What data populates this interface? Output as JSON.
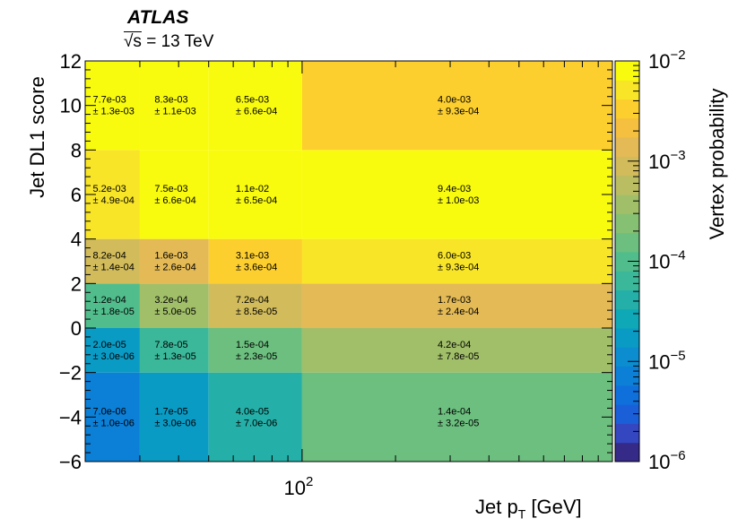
{
  "header": {
    "experiment": "ATLAS",
    "energy_sqrt": "√s",
    "energy_value": "= 13 TeV"
  },
  "chart_data": {
    "type": "heatmap",
    "xlabel_main": "Jet p",
    "xlabel_sub": "T",
    "xlabel_unit": "[GeV]",
    "ylabel": "Jet DL1 score",
    "zlabel": "Vertex probability",
    "x_scale": "log",
    "x_edges": [
      20,
      30,
      50,
      100,
      1000
    ],
    "x_range": [
      20,
      1000
    ],
    "y_edges": [
      -6,
      -2,
      0,
      2,
      4,
      8,
      12
    ],
    "y_range": [
      -6,
      12
    ],
    "z_scale": "log",
    "z_range": [
      1e-06,
      0.01
    ],
    "y_ticks": [
      "12",
      "10",
      "8",
      "6",
      "4",
      "2",
      "0",
      "−2",
      "−4",
      "−6"
    ],
    "x_tick_labels": [
      {
        "base": "10",
        "exp": "2"
      }
    ],
    "colorbar_ticks": [
      {
        "base": "10",
        "exp": "−2"
      },
      {
        "base": "10",
        "exp": "−3"
      },
      {
        "base": "10",
        "exp": "−4"
      },
      {
        "base": "10",
        "exp": "−5"
      },
      {
        "base": "10",
        "exp": "−6"
      }
    ],
    "cells": [
      [
        {
          "v": "7.0e-06",
          "e": "± 1.0e-06"
        },
        {
          "v": "1.7e-05",
          "e": "± 3.0e-06"
        },
        {
          "v": "4.0e-05",
          "e": "± 7.0e-06"
        },
        {
          "v": "1.4e-04",
          "e": "± 3.2e-05"
        }
      ],
      [
        {
          "v": "2.0e-05",
          "e": "± 3.0e-06"
        },
        {
          "v": "7.8e-05",
          "e": "± 1.3e-05"
        },
        {
          "v": "1.5e-04",
          "e": "± 2.3e-05"
        },
        {
          "v": "4.2e-04",
          "e": "± 7.8e-05"
        }
      ],
      [
        {
          "v": "1.2e-04",
          "e": "± 1.8e-05"
        },
        {
          "v": "3.2e-04",
          "e": "± 5.0e-05"
        },
        {
          "v": "7.2e-04",
          "e": "± 8.5e-05"
        },
        {
          "v": "1.7e-03",
          "e": "± 2.4e-04"
        }
      ],
      [
        {
          "v": "8.2e-04",
          "e": "± 1.4e-04"
        },
        {
          "v": "1.6e-03",
          "e": "± 2.6e-04"
        },
        {
          "v": "3.1e-03",
          "e": "± 3.6e-04"
        },
        {
          "v": "6.0e-03",
          "e": "± 9.3e-04"
        }
      ],
      [
        {
          "v": "5.2e-03",
          "e": "± 4.9e-04"
        },
        {
          "v": "7.5e-03",
          "e": "± 6.6e-04"
        },
        {
          "v": "1.1e-02",
          "e": "± 6.5e-04"
        },
        {
          "v": "9.4e-03",
          "e": "± 1.0e-03"
        }
      ],
      [
        {
          "v": "7.7e-03",
          "e": "± 1.3e-03"
        },
        {
          "v": "8.3e-03",
          "e": "± 1.1e-03"
        },
        {
          "v": "6.5e-03",
          "e": "± 6.6e-04"
        },
        {
          "v": "4.0e-03",
          "e": "± 9.3e-04"
        }
      ]
    ],
    "palette": [
      "#352a87",
      "#3546c1",
      "#1a5fd8",
      "#0f70dc",
      "#0c7fd6",
      "#0b8dcf",
      "#0a9bc5",
      "#0ea8b6",
      "#24b0a8",
      "#3bb89a",
      "#52bd8c",
      "#6cbf7f",
      "#86c073",
      "#a1bf69",
      "#bbbd62",
      "#d1bb5b",
      "#e4ba56",
      "#f5bf3f",
      "#fcce2e",
      "#f9e527",
      "#f9fb0e"
    ]
  }
}
